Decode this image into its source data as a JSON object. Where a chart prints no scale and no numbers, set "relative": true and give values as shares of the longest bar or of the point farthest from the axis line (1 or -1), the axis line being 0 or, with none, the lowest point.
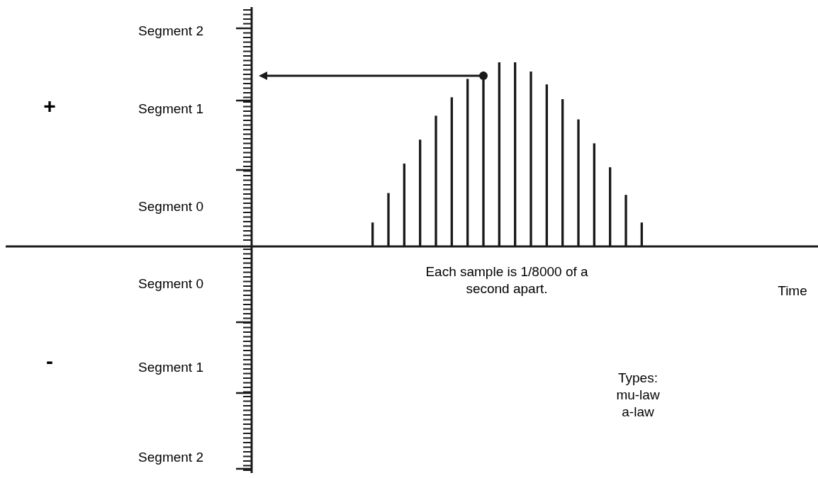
{
  "chart_data": {
    "type": "bar",
    "relative": true,
    "color": "#1a1a1a",
    "categories": [
      null,
      null,
      null,
      null,
      null,
      null,
      null,
      null,
      null,
      null,
      null,
      null,
      null,
      null,
      null,
      null,
      null,
      null
    ],
    "values": [
      0.13,
      0.29,
      0.45,
      0.58,
      0.71,
      0.81,
      0.91,
      0.95,
      1,
      1,
      0.95,
      0.88,
      0.8,
      0.69,
      0.56,
      0.43,
      0.28,
      0.13
    ],
    "annotations": [
      "Segment 2",
      "Segment 1",
      "Segment 0",
      "Segment 0",
      "Segment 1",
      "Segment 2",
      "+",
      "-",
      "Each sample is 1/8000 of a\nsecond apart.",
      "Types:\nmu-law\na-law",
      "Time"
    ]
  }
}
